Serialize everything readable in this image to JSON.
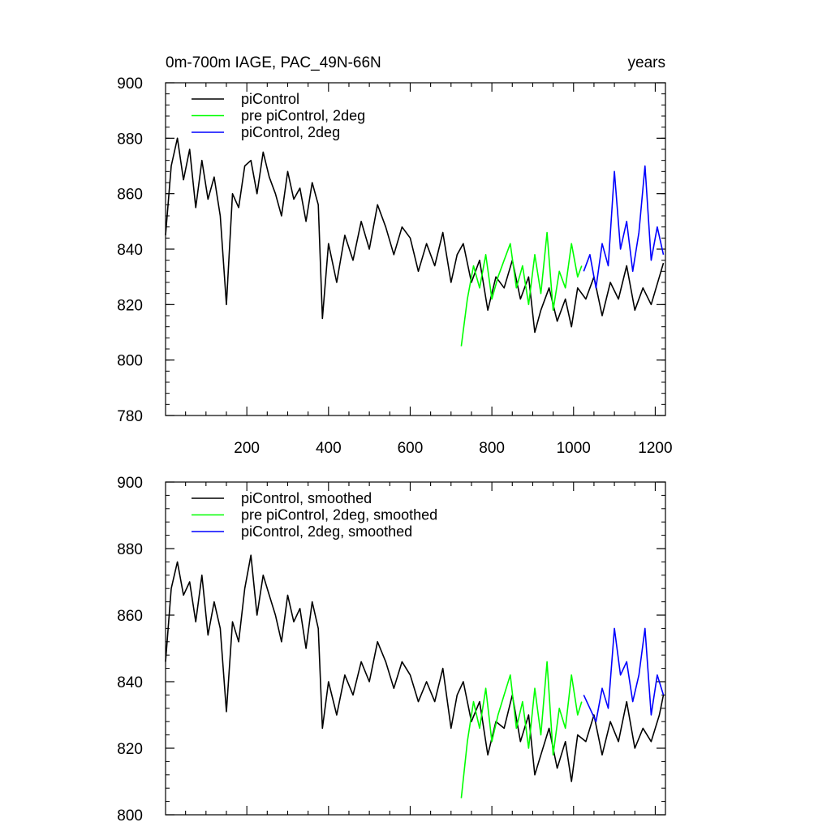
{
  "figure": {
    "title_left": "0m-700m IAGE, PAC_49N-66N",
    "title_right": "years"
  },
  "chart_data": [
    {
      "type": "line",
      "title": "0m-700m IAGE, PAC_49N-66N",
      "units": "years",
      "xlim": [
        1,
        1225
      ],
      "ylim": [
        780,
        900
      ],
      "xticks": [
        200,
        400,
        600,
        800,
        1000,
        1200
      ],
      "xticklabels": [
        "200",
        "400",
        "600",
        "800",
        "1000",
        "1200"
      ],
      "yticks": [
        780,
        800,
        820,
        840,
        860,
        880,
        900
      ],
      "yticklabels": [
        "780",
        "800",
        "820",
        "840",
        "860",
        "880",
        "900"
      ],
      "grid": false,
      "legend_position": "top-left",
      "series": [
        {
          "name": "piControl",
          "color": "#000000",
          "x": [
            1,
            15,
            30,
            45,
            60,
            75,
            90,
            105,
            120,
            135,
            150,
            165,
            180,
            195,
            210,
            225,
            240,
            255,
            270,
            285,
            300,
            315,
            330,
            345,
            360,
            375,
            385,
            400,
            420,
            440,
            460,
            480,
            500,
            520,
            540,
            560,
            580,
            600,
            620,
            640,
            660,
            680,
            700,
            715,
            730,
            750,
            770,
            790,
            810,
            830,
            850,
            870,
            890,
            905,
            920,
            940,
            960,
            980,
            995,
            1010,
            1030,
            1050,
            1070,
            1090,
            1110,
            1130,
            1150,
            1170,
            1190,
            1210,
            1220
          ],
          "y": [
            845,
            870,
            880,
            865,
            876,
            855,
            872,
            858,
            866,
            852,
            820,
            860,
            855,
            870,
            872,
            860,
            875,
            866,
            860,
            852,
            868,
            858,
            862,
            850,
            864,
            856,
            815,
            842,
            828,
            845,
            836,
            850,
            840,
            856,
            848,
            838,
            848,
            844,
            832,
            842,
            834,
            846,
            828,
            838,
            842,
            828,
            836,
            818,
            830,
            826,
            836,
            822,
            830,
            810,
            818,
            826,
            814,
            822,
            812,
            826,
            822,
            830,
            816,
            828,
            822,
            834,
            818,
            826,
            820,
            830,
            835
          ]
        },
        {
          "name": "pre piControl, 2deg",
          "color": "#00ff00",
          "x": [
            725,
            740,
            755,
            770,
            785,
            800,
            815,
            830,
            845,
            860,
            875,
            890,
            905,
            920,
            935,
            950,
            965,
            980,
            995,
            1010,
            1020
          ],
          "y": [
            805,
            822,
            834,
            826,
            838,
            822,
            830,
            836,
            842,
            826,
            834,
            820,
            838,
            824,
            846,
            818,
            832,
            826,
            842,
            830,
            834
          ]
        },
        {
          "name": "piControl, 2deg",
          "color": "#0000ff",
          "x": [
            1025,
            1040,
            1055,
            1070,
            1085,
            1100,
            1115,
            1130,
            1145,
            1160,
            1175,
            1190,
            1205,
            1220
          ],
          "y": [
            832,
            838,
            826,
            842,
            834,
            868,
            840,
            850,
            832,
            846,
            870,
            836,
            848,
            838
          ]
        }
      ]
    },
    {
      "type": "line",
      "xlim": [
        1,
        1225
      ],
      "ylim": [
        800,
        900
      ],
      "xticks": [
        200,
        400,
        600,
        800,
        1000,
        1200
      ],
      "yticks": [
        800,
        820,
        840,
        860,
        880,
        900
      ],
      "yticklabels": [
        "800",
        "820",
        "840",
        "860",
        "880",
        "900"
      ],
      "grid": false,
      "legend_position": "top-left",
      "series": [
        {
          "name": "piControl, smoothed",
          "color": "#000000",
          "x": [
            1,
            15,
            30,
            45,
            60,
            75,
            90,
            105,
            120,
            135,
            150,
            165,
            180,
            195,
            210,
            225,
            240,
            255,
            270,
            285,
            300,
            315,
            330,
            345,
            360,
            375,
            385,
            400,
            420,
            440,
            460,
            480,
            500,
            520,
            540,
            560,
            580,
            600,
            620,
            640,
            660,
            680,
            700,
            715,
            730,
            750,
            770,
            790,
            810,
            830,
            850,
            870,
            890,
            905,
            920,
            940,
            960,
            980,
            995,
            1010,
            1030,
            1050,
            1070,
            1090,
            1110,
            1130,
            1150,
            1170,
            1190,
            1210,
            1220
          ],
          "y": [
            846,
            868,
            876,
            866,
            870,
            858,
            872,
            854,
            864,
            856,
            831,
            858,
            852,
            868,
            878,
            860,
            872,
            866,
            860,
            852,
            866,
            858,
            862,
            850,
            864,
            856,
            826,
            840,
            830,
            842,
            836,
            846,
            840,
            852,
            846,
            838,
            846,
            842,
            834,
            840,
            834,
            844,
            826,
            836,
            840,
            828,
            834,
            818,
            828,
            826,
            836,
            822,
            830,
            812,
            818,
            826,
            814,
            822,
            810,
            824,
            822,
            830,
            818,
            828,
            822,
            834,
            820,
            826,
            822,
            830,
            836
          ]
        },
        {
          "name": "pre piControl, 2deg, smoothed",
          "color": "#00ff00",
          "x": [
            725,
            740,
            755,
            770,
            785,
            800,
            815,
            830,
            845,
            860,
            875,
            890,
            905,
            920,
            935,
            950,
            965,
            980,
            995,
            1010,
            1020
          ],
          "y": [
            805,
            822,
            834,
            826,
            838,
            822,
            830,
            836,
            842,
            826,
            834,
            820,
            838,
            824,
            846,
            818,
            832,
            826,
            842,
            830,
            834
          ]
        },
        {
          "name": "piControl, 2deg, smoothed",
          "color": "#0000ff",
          "x": [
            1025,
            1040,
            1055,
            1070,
            1085,
            1100,
            1115,
            1130,
            1145,
            1160,
            1175,
            1190,
            1205,
            1220
          ],
          "y": [
            836,
            832,
            828,
            838,
            832,
            856,
            842,
            846,
            834,
            842,
            856,
            830,
            842,
            836
          ]
        }
      ]
    }
  ]
}
